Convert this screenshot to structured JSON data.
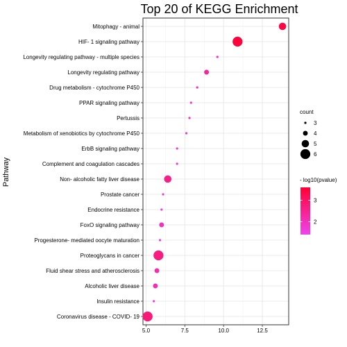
{
  "chart_data": {
    "type": "scatter",
    "title": "Top 20 of KEGG Enrichment",
    "ylabel": "Pathway",
    "xlabel": "",
    "xlim": [
      4.8,
      14.2
    ],
    "xticks": [
      "5.0",
      "7.5",
      "10.0",
      "12.5"
    ],
    "xtick_values": [
      5.0,
      7.5,
      10.0,
      12.5
    ],
    "grid": true,
    "legend_placement": "right",
    "size_legend": {
      "title": "count",
      "items": [
        "3",
        "4",
        "5",
        "6"
      ]
    },
    "color_legend": {
      "title": "- log10(pvalue)",
      "ticks": [
        "3",
        "2"
      ],
      "tick_values": [
        3,
        2
      ],
      "range": [
        1.4,
        3.6
      ],
      "low_color": "#ee44ee",
      "high_color": "#ff0033"
    },
    "points": [
      {
        "pathway": "Mitophagy -  animal",
        "x": 13.8,
        "count": 5,
        "log10p": 3.4
      },
      {
        "pathway": "HIF- 1 signaling pathway",
        "x": 10.9,
        "count": 6,
        "log10p": 3.5
      },
      {
        "pathway": "Longevity regulating pathway -  multiple species",
        "x": 9.6,
        "count": 3,
        "log10p": 2.0
      },
      {
        "pathway": "Longevity regulating pathway",
        "x": 8.9,
        "count": 4,
        "log10p": 2.4
      },
      {
        "pathway": "Drug metabolism -  cytochrome P450",
        "x": 8.3,
        "count": 3,
        "log10p": 2.0
      },
      {
        "pathway": "PPAR signaling pathway",
        "x": 7.9,
        "count": 3,
        "log10p": 1.9
      },
      {
        "pathway": "Pertussis",
        "x": 7.8,
        "count": 3,
        "log10p": 1.9
      },
      {
        "pathway": "Metabolism of xenobiotics by cytochrome P450",
        "x": 7.6,
        "count": 3,
        "log10p": 1.8
      },
      {
        "pathway": "ErbB signaling pathway",
        "x": 7.0,
        "count": 3,
        "log10p": 1.7
      },
      {
        "pathway": "Complement and coagulation cascades",
        "x": 7.0,
        "count": 3,
        "log10p": 1.7
      },
      {
        "pathway": "Non- alcoholic fatty liver disease",
        "x": 6.4,
        "count": 5,
        "log10p": 2.6
      },
      {
        "pathway": "Prostate cancer",
        "x": 6.1,
        "count": 3,
        "log10p": 1.6
      },
      {
        "pathway": "Endocrine resistance",
        "x": 6.0,
        "count": 3,
        "log10p": 1.6
      },
      {
        "pathway": "FoxO signaling pathway",
        "x": 6.0,
        "count": 4,
        "log10p": 2.0
      },
      {
        "pathway": "Progesterone- mediated oocyte maturation",
        "x": 5.9,
        "count": 3,
        "log10p": 1.6
      },
      {
        "pathway": "Proteoglycans in cancer",
        "x": 5.8,
        "count": 6,
        "log10p": 2.7
      },
      {
        "pathway": "Fluid shear stress and atherosclerosis",
        "x": 5.7,
        "count": 4,
        "log10p": 2.2
      },
      {
        "pathway": "Alcoholic liver disease",
        "x": 5.6,
        "count": 4,
        "log10p": 2.1
      },
      {
        "pathway": "Insulin resistance",
        "x": 5.5,
        "count": 3,
        "log10p": 1.6
      },
      {
        "pathway": "Coronavirus disease -  COVID- 19",
        "x": 5.1,
        "count": 6,
        "log10p": 2.8
      }
    ]
  }
}
